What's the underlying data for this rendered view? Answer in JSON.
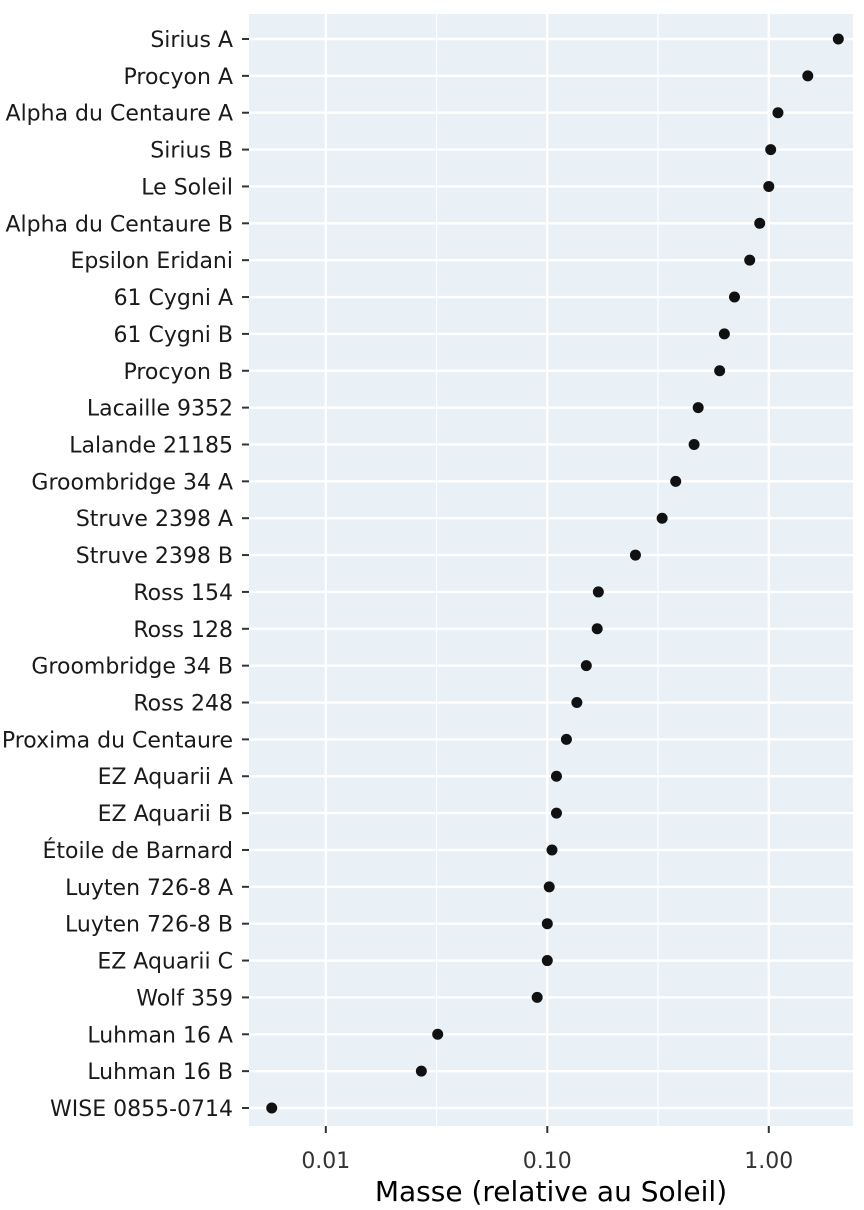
{
  "chart_data": {
    "type": "scatter",
    "xlabel": "Masse (relative au Soleil)",
    "ylabel": "",
    "x_scale": "log10",
    "xlim": [
      0.0045,
      2.4
    ],
    "x_ticks": [
      {
        "value": 0.01,
        "label": "0.01"
      },
      {
        "value": 0.1,
        "label": "0.10"
      },
      {
        "value": 1,
        "label": "1.00"
      }
    ],
    "grid": true,
    "background": "#e9f1f7",
    "grid_color": "#ffffff",
    "point_color": "#111111",
    "categories": [
      "Sirius A",
      "Procyon A",
      "Alpha du Centaure A",
      "Sirius B",
      "Le Soleil",
      "Alpha du Centaure B",
      "Epsilon Eridani",
      "61 Cygni A",
      "61 Cygni B",
      "Procyon B",
      "Lacaille 9352",
      "Lalande 21185",
      "Groombridge 34 A",
      "Struve 2398 A",
      "Struve 2398 B",
      "Ross 154",
      "Ross 128",
      "Groombridge 34 B",
      "Ross 248",
      "Proxima du Centaure",
      "EZ Aquarii A",
      "EZ Aquarii B",
      "Étoile de Barnard",
      "Luyten 726-8 A",
      "Luyten 726-8 B",
      "EZ Aquarii C",
      "Wolf 359",
      "Luhman 16 A",
      "Luhman 16 B",
      "WISE 0855-0714"
    ],
    "values": [
      2.06,
      1.5,
      1.1,
      1.02,
      1.0,
      0.91,
      0.82,
      0.7,
      0.63,
      0.6,
      0.48,
      0.46,
      0.38,
      0.33,
      0.25,
      0.17,
      0.168,
      0.15,
      0.136,
      0.122,
      0.11,
      0.11,
      0.105,
      0.102,
      0.1,
      0.1,
      0.09,
      0.032,
      0.027,
      0.0057
    ]
  }
}
